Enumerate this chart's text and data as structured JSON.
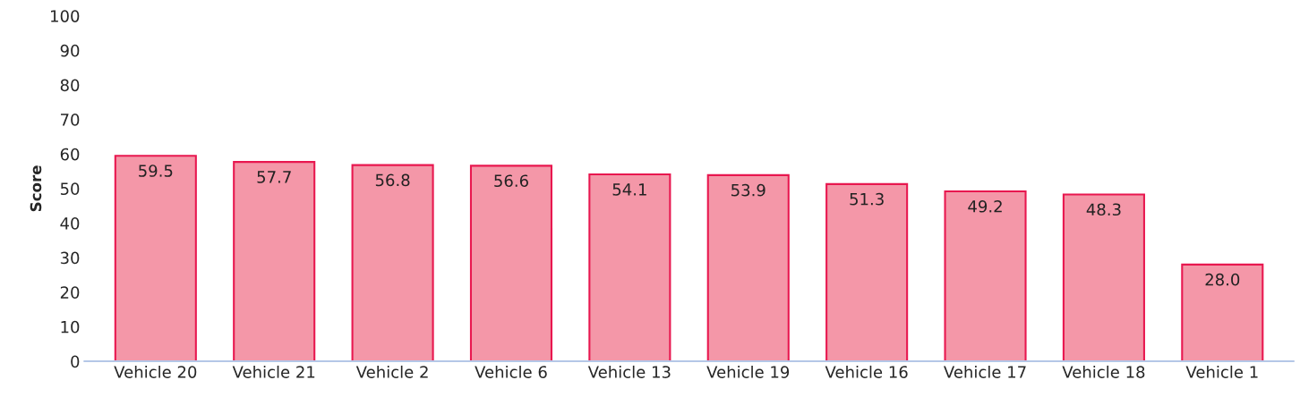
{
  "chart_data": {
    "type": "bar",
    "ylabel": "Score",
    "categories": [
      "Vehicle 20",
      "Vehicle 21",
      "Vehicle 2",
      "Vehicle 6",
      "Vehicle 13",
      "Vehicle 19",
      "Vehicle 16",
      "Vehicle 17",
      "Vehicle 18",
      "Vehicle 1"
    ],
    "values": [
      59.5,
      57.7,
      56.8,
      56.6,
      54.1,
      53.9,
      51.3,
      49.2,
      48.3,
      28.0
    ],
    "color": "#f497a8",
    "ylim": [
      0,
      100
    ],
    "yticks": [
      0,
      10,
      20,
      30,
      40,
      50,
      60,
      70,
      80,
      90,
      100
    ],
    "value_labels": [
      "59.5",
      "57.7",
      "56.8",
      "56.6",
      "54.1",
      "53.9",
      "51.3",
      "49.2",
      "48.3",
      "28.0"
    ],
    "grid": false,
    "legend": false
  }
}
